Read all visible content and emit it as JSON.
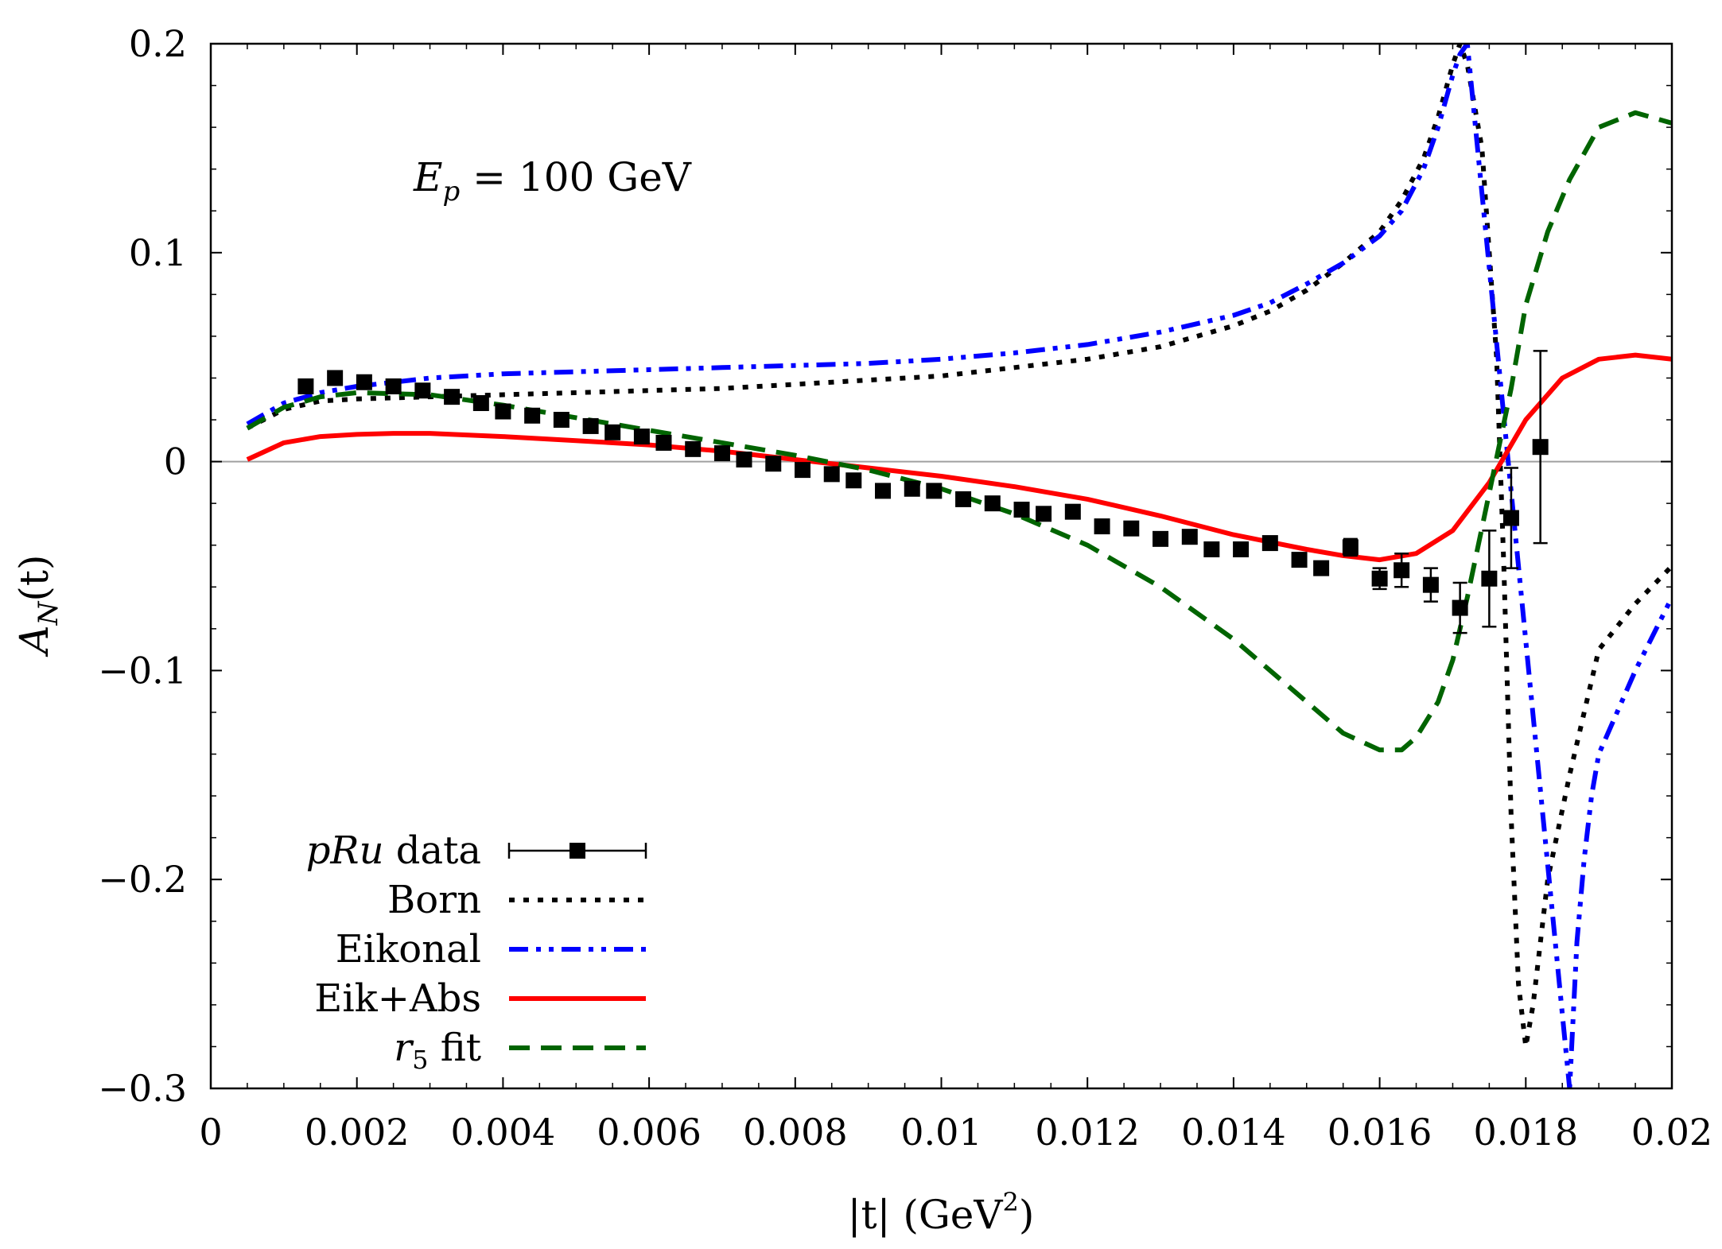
{
  "chart_data": {
    "type": "line",
    "title": "",
    "annotation": {
      "main": "E",
      "sub": "p",
      "rest": " = 100 GeV"
    },
    "xlabel": {
      "pre": "|t| (GeV",
      "sup": "2",
      "post": ")"
    },
    "ylabel": {
      "main": "A",
      "sub": "N",
      "rest": "(t)"
    },
    "xlim": [
      0,
      0.02
    ],
    "ylim": [
      -0.3,
      0.2
    ],
    "xticks": [
      0,
      0.002,
      0.004,
      0.006,
      0.008,
      0.01,
      0.012,
      0.014,
      0.016,
      0.018,
      0.02
    ],
    "xtick_labels": [
      "0",
      "0.002",
      "0.004",
      "0.006",
      "0.008",
      "0.01",
      "0.012",
      "0.014",
      "0.016",
      "0.018",
      "0.02"
    ],
    "yticks": [
      -0.3,
      -0.2,
      -0.1,
      0,
      0.1,
      0.2
    ],
    "ytick_labels": [
      "−0.3",
      "−0.2",
      "−0.1",
      "0",
      "0.1",
      "0.2"
    ],
    "legend_position": "bottom-left",
    "series": [
      {
        "name": "Born",
        "label_main": "Born",
        "label_sub": "",
        "label_rest": "",
        "color": "#000000",
        "style": "dotted",
        "x": [
          0.0005,
          0.001,
          0.0015,
          0.002,
          0.003,
          0.004,
          0.005,
          0.006,
          0.007,
          0.008,
          0.009,
          0.01,
          0.011,
          0.012,
          0.013,
          0.014,
          0.0145,
          0.015,
          0.0155,
          0.016,
          0.0163,
          0.0166,
          0.0168,
          0.017,
          0.0171,
          0.0172,
          0.0174,
          0.0176,
          0.0177,
          0.0178,
          0.0179,
          0.018,
          0.0181,
          0.0183,
          0.0186,
          0.019,
          0.0195,
          0.02
        ],
        "y": [
          0.016,
          0.025,
          0.029,
          0.03,
          0.031,
          0.032,
          0.033,
          0.034,
          0.035,
          0.037,
          0.039,
          0.041,
          0.045,
          0.049,
          0.055,
          0.065,
          0.072,
          0.082,
          0.095,
          0.11,
          0.125,
          0.145,
          0.165,
          0.19,
          0.2,
          0.19,
          0.15,
          0.05,
          -0.05,
          -0.17,
          -0.25,
          -0.28,
          -0.26,
          -0.2,
          -0.15,
          -0.09,
          -0.068,
          -0.05
        ]
      },
      {
        "name": "Eikonal",
        "label_main": "Eikonal",
        "label_sub": "",
        "label_rest": "",
        "color": "#0000ff",
        "style": "dash-dot-dot",
        "x": [
          0.0005,
          0.001,
          0.0015,
          0.002,
          0.003,
          0.004,
          0.005,
          0.006,
          0.007,
          0.008,
          0.009,
          0.01,
          0.011,
          0.012,
          0.013,
          0.014,
          0.0145,
          0.015,
          0.0155,
          0.016,
          0.0163,
          0.0166,
          0.0168,
          0.017,
          0.0171,
          0.0172,
          0.0186,
          0.0187,
          0.0188,
          0.0189,
          0.019,
          0.0195,
          0.02
        ],
        "y": [
          0.018,
          0.028,
          0.033,
          0.036,
          0.04,
          0.042,
          0.043,
          0.044,
          0.045,
          0.046,
          0.047,
          0.049,
          0.052,
          0.056,
          0.062,
          0.07,
          0.076,
          0.085,
          0.095,
          0.108,
          0.12,
          0.14,
          0.16,
          0.185,
          0.195,
          0.2,
          -0.3,
          -0.23,
          -0.19,
          -0.16,
          -0.14,
          -0.1,
          -0.065
        ]
      },
      {
        "name": "Eik+Abs",
        "label_main": "Eik+Abs",
        "label_sub": "",
        "label_rest": "",
        "color": "#ff0000",
        "style": "solid",
        "x": [
          0.0005,
          0.001,
          0.0015,
          0.002,
          0.0025,
          0.003,
          0.004,
          0.005,
          0.006,
          0.007,
          0.008,
          0.009,
          0.01,
          0.011,
          0.012,
          0.013,
          0.014,
          0.015,
          0.0155,
          0.016,
          0.0165,
          0.017,
          0.0175,
          0.018,
          0.0185,
          0.019,
          0.0195,
          0.02
        ],
        "y": [
          0.001,
          0.009,
          0.012,
          0.013,
          0.0135,
          0.0135,
          0.012,
          0.01,
          0.008,
          0.005,
          0.001,
          -0.003,
          -0.007,
          -0.012,
          -0.018,
          -0.026,
          -0.035,
          -0.042,
          -0.045,
          -0.047,
          -0.044,
          -0.033,
          -0.01,
          0.02,
          0.04,
          0.049,
          0.051,
          0.049
        ]
      },
      {
        "name": "r5 fit",
        "label_main": "r",
        "label_sub": "5",
        "label_rest": " fit",
        "color": "#006400",
        "style": "dashed",
        "x": [
          0.0005,
          0.001,
          0.0015,
          0.002,
          0.003,
          0.004,
          0.005,
          0.006,
          0.007,
          0.008,
          0.009,
          0.01,
          0.011,
          0.012,
          0.013,
          0.014,
          0.015,
          0.0155,
          0.016,
          0.0163,
          0.0165,
          0.0168,
          0.017,
          0.0172,
          0.0175,
          0.0178,
          0.018,
          0.0183,
          0.0186,
          0.019,
          0.0195,
          0.02
        ],
        "y": [
          0.016,
          0.026,
          0.031,
          0.033,
          0.032,
          0.027,
          0.021,
          0.015,
          0.009,
          0.003,
          -0.004,
          -0.013,
          -0.025,
          -0.04,
          -0.06,
          -0.085,
          -0.115,
          -0.13,
          -0.138,
          -0.138,
          -0.132,
          -0.115,
          -0.095,
          -0.065,
          -0.015,
          0.035,
          0.075,
          0.11,
          0.135,
          0.16,
          0.167,
          0.162
        ]
      }
    ],
    "data_series": {
      "name": "pRu data",
      "label_main": "pRu",
      "label_sub": "",
      "label_rest": " data",
      "color": "#000000",
      "points": [
        {
          "x": 0.0013,
          "y": 0.036,
          "err": 0.002
        },
        {
          "x": 0.0017,
          "y": 0.04,
          "err": 0.002
        },
        {
          "x": 0.0021,
          "y": 0.038,
          "err": 0.002
        },
        {
          "x": 0.0025,
          "y": 0.036,
          "err": 0.002
        },
        {
          "x": 0.0029,
          "y": 0.034,
          "err": 0.002
        },
        {
          "x": 0.0033,
          "y": 0.031,
          "err": 0.002
        },
        {
          "x": 0.0037,
          "y": 0.028,
          "err": 0.002
        },
        {
          "x": 0.004,
          "y": 0.024,
          "err": 0.002
        },
        {
          "x": 0.0044,
          "y": 0.022,
          "err": 0.002
        },
        {
          "x": 0.0048,
          "y": 0.02,
          "err": 0.002
        },
        {
          "x": 0.0052,
          "y": 0.017,
          "err": 0.002
        },
        {
          "x": 0.0055,
          "y": 0.014,
          "err": 0.002
        },
        {
          "x": 0.0059,
          "y": 0.012,
          "err": 0.002
        },
        {
          "x": 0.0062,
          "y": 0.009,
          "err": 0.002
        },
        {
          "x": 0.0066,
          "y": 0.006,
          "err": 0.002
        },
        {
          "x": 0.007,
          "y": 0.004,
          "err": 0.002
        },
        {
          "x": 0.0073,
          "y": 0.001,
          "err": 0.002
        },
        {
          "x": 0.0077,
          "y": -0.001,
          "err": 0.002
        },
        {
          "x": 0.0081,
          "y": -0.004,
          "err": 0.002
        },
        {
          "x": 0.0085,
          "y": -0.006,
          "err": 0.002
        },
        {
          "x": 0.0088,
          "y": -0.009,
          "err": 0.002
        },
        {
          "x": 0.0092,
          "y": -0.014,
          "err": 0.002
        },
        {
          "x": 0.0096,
          "y": -0.013,
          "err": 0.002
        },
        {
          "x": 0.0099,
          "y": -0.014,
          "err": 0.002
        },
        {
          "x": 0.0103,
          "y": -0.018,
          "err": 0.002
        },
        {
          "x": 0.0107,
          "y": -0.02,
          "err": 0.002
        },
        {
          "x": 0.0111,
          "y": -0.023,
          "err": 0.002
        },
        {
          "x": 0.0114,
          "y": -0.025,
          "err": 0.002
        },
        {
          "x": 0.0118,
          "y": -0.024,
          "err": 0.002
        },
        {
          "x": 0.0122,
          "y": -0.031,
          "err": 0.002
        },
        {
          "x": 0.0126,
          "y": -0.032,
          "err": 0.002
        },
        {
          "x": 0.013,
          "y": -0.037,
          "err": 0.002
        },
        {
          "x": 0.0134,
          "y": -0.036,
          "err": 0.002
        },
        {
          "x": 0.0137,
          "y": -0.042,
          "err": 0.002
        },
        {
          "x": 0.0141,
          "y": -0.042,
          "err": 0.002
        },
        {
          "x": 0.0145,
          "y": -0.039,
          "err": 0.002
        },
        {
          "x": 0.0149,
          "y": -0.047,
          "err": 0.003
        },
        {
          "x": 0.0152,
          "y": -0.051,
          "err": 0.003
        },
        {
          "x": 0.0156,
          "y": -0.041,
          "err": 0.004
        },
        {
          "x": 0.016,
          "y": -0.056,
          "err": 0.005
        },
        {
          "x": 0.0163,
          "y": -0.052,
          "err": 0.008
        },
        {
          "x": 0.0167,
          "y": -0.059,
          "err": 0.008
        },
        {
          "x": 0.0171,
          "y": -0.07,
          "err": 0.012
        },
        {
          "x": 0.0175,
          "y": -0.056,
          "err": 0.023
        },
        {
          "x": 0.0178,
          "y": -0.027,
          "err": 0.024
        },
        {
          "x": 0.0182,
          "y": 0.007,
          "err": 0.046
        }
      ]
    }
  }
}
